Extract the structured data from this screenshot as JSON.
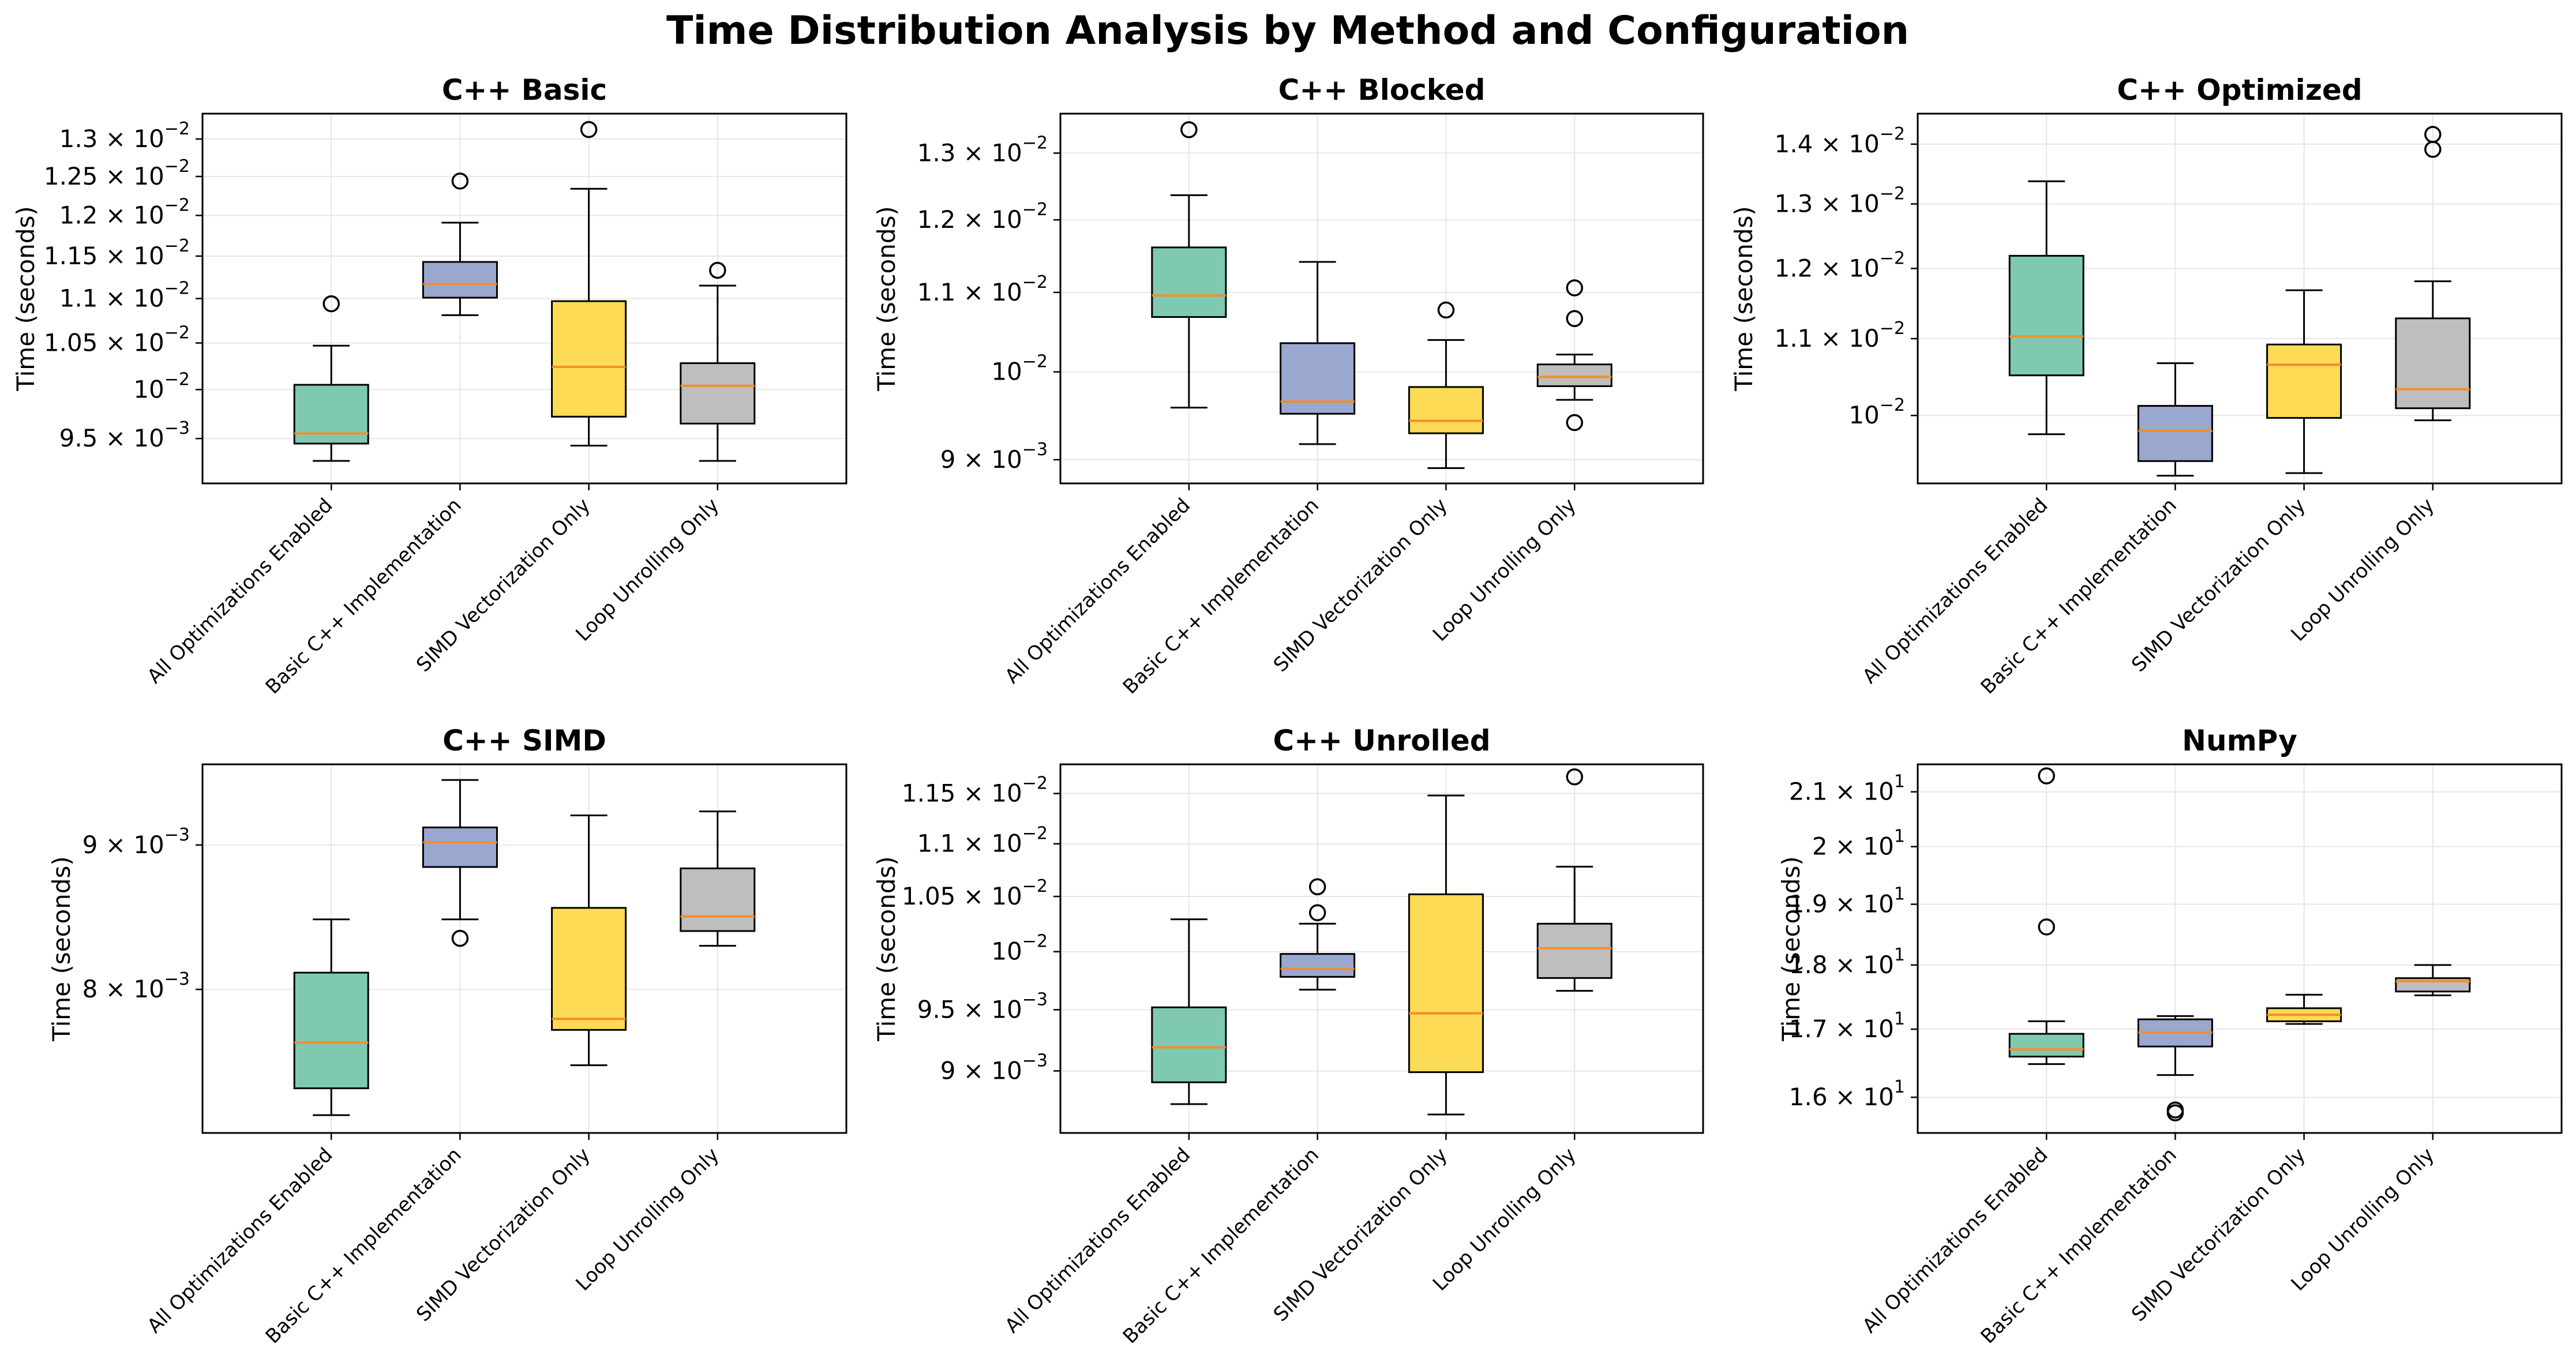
{
  "chart_data": {
    "title": "Time Distribution Analysis by Method and Configuration",
    "type": "box",
    "categories": [
      "All Optimizations Enabled",
      "Basic C++ Implementation",
      "SIMD Vectorization Only",
      "Loop Unrolling Only"
    ],
    "colors": [
      "#7fc9b0",
      "#9aa7cf",
      "#fddb55",
      "#bebebe"
    ],
    "median_color": "#f28e2b",
    "ylabel": "Time (seconds)",
    "yscale": "log",
    "grid": true,
    "panels": [
      {
        "title": "C++ Basic",
        "ylim": [
          0.009064,
          0.01335
        ],
        "yticks": [
          {
            "v": 0.0095,
            "m": "9.5",
            "e": "−3"
          },
          {
            "v": 0.01,
            "m": "",
            "e": "−2"
          },
          {
            "v": 0.0105,
            "m": "1.05",
            "e": "−2"
          },
          {
            "v": 0.011,
            "m": "1.1",
            "e": "−2"
          },
          {
            "v": 0.0115,
            "m": "1.15",
            "e": "−2"
          },
          {
            "v": 0.012,
            "m": "1.2",
            "e": "−2"
          },
          {
            "v": 0.0125,
            "m": "1.25",
            "e": "−2"
          },
          {
            "v": 0.013,
            "m": "1.3",
            "e": "−2"
          }
        ],
        "boxes": [
          {
            "whislo": 0.00928,
            "q1": 0.00945,
            "med": 0.00955,
            "q3": 0.01005,
            "whishi": 0.01047,
            "fliers": [
              0.01094
            ]
          },
          {
            "whislo": 0.01081,
            "q1": 0.01101,
            "med": 0.01117,
            "q3": 0.01143,
            "whishi": 0.01191,
            "fliers": [
              0.01244
            ]
          },
          {
            "whislo": 0.00943,
            "q1": 0.00972,
            "med": 0.01024,
            "q3": 0.01097,
            "whishi": 0.01234,
            "fliers": [
              0.01313
            ]
          },
          {
            "whislo": 0.00928,
            "q1": 0.00965,
            "med": 0.01004,
            "q3": 0.01028,
            "whishi": 0.01115,
            "fliers": [
              0.01133
            ]
          }
        ]
      },
      {
        "title": "C++ Blocked",
        "ylim": [
          0.008748,
          0.01363
        ],
        "yticks": [
          {
            "v": 0.009,
            "m": "9",
            "e": "−3"
          },
          {
            "v": 0.01,
            "m": "",
            "e": "−2"
          },
          {
            "v": 0.011,
            "m": "1.1",
            "e": "−2"
          },
          {
            "v": 0.012,
            "m": "1.2",
            "e": "−2"
          },
          {
            "v": 0.013,
            "m": "1.3",
            "e": "−2"
          }
        ],
        "boxes": [
          {
            "whislo": 0.00958,
            "q1": 0.01068,
            "med": 0.01096,
            "q3": 0.01161,
            "whishi": 0.01236,
            "fliers": [
              0.01337
            ]
          },
          {
            "whislo": 0.00917,
            "q1": 0.00951,
            "med": 0.00965,
            "q3": 0.01035,
            "whishi": 0.01141,
            "fliers": []
          },
          {
            "whislo": 0.00891,
            "q1": 0.00929,
            "med": 0.00943,
            "q3": 0.00982,
            "whishi": 0.01039,
            "fliers": [
              0.01077
            ]
          },
          {
            "whislo": 0.00967,
            "q1": 0.00983,
            "med": 0.00994,
            "q3": 0.01009,
            "whishi": 0.01021,
            "fliers": [
              0.00941,
              0.01066,
              0.01106
            ]
          }
        ]
      },
      {
        "title": "C++ Optimized",
        "ylim": [
          0.009192,
          0.01454
        ],
        "yticks": [
          {
            "v": 0.01,
            "m": "",
            "e": "−2"
          },
          {
            "v": 0.011,
            "m": "1.1",
            "e": "−2"
          },
          {
            "v": 0.012,
            "m": "1.2",
            "e": "−2"
          },
          {
            "v": 0.013,
            "m": "1.3",
            "e": "−2"
          },
          {
            "v": 0.014,
            "m": "1.4",
            "e": "−2"
          }
        ],
        "boxes": [
          {
            "whislo": 0.00977,
            "q1": 0.01051,
            "med": 0.01103,
            "q3": 0.01219,
            "whishi": 0.01337,
            "fliers": []
          },
          {
            "whislo": 0.00928,
            "q1": 0.00945,
            "med": 0.00981,
            "q3": 0.01012,
            "whishi": 0.01067,
            "fliers": []
          },
          {
            "whislo": 0.00931,
            "q1": 0.00997,
            "med": 0.01065,
            "q3": 0.01092,
            "whishi": 0.01168,
            "fliers": []
          },
          {
            "whislo": 0.00994,
            "q1": 0.01009,
            "med": 0.01033,
            "q3": 0.01128,
            "whishi": 0.01181,
            "fliers": [
              0.01391,
              0.01417
            ]
          }
        ]
      },
      {
        "title": "C++ SIMD",
        "ylim": [
          0.007116,
          0.009612
        ],
        "yticks": [
          {
            "v": 0.008,
            "m": "8",
            "e": "−3"
          },
          {
            "v": 0.009,
            "m": "9",
            "e": "−3"
          }
        ],
        "boxes": [
          {
            "whislo": 0.00722,
            "q1": 0.00738,
            "med": 0.00766,
            "q3": 0.00811,
            "whishi": 0.00847,
            "fliers": []
          },
          {
            "whislo": 0.00847,
            "q1": 0.00884,
            "med": 0.00902,
            "q3": 0.00913,
            "whishi": 0.00949,
            "fliers": [
              0.00834
            ]
          },
          {
            "whislo": 0.00752,
            "q1": 0.00774,
            "med": 0.00781,
            "q3": 0.00855,
            "whishi": 0.00922,
            "fliers": []
          },
          {
            "whislo": 0.00829,
            "q1": 0.00839,
            "med": 0.00849,
            "q3": 0.00883,
            "whishi": 0.00925,
            "fliers": []
          }
        ]
      },
      {
        "title": "C++ Unrolled",
        "ylim": [
          0.00852,
          0.0118
        ],
        "yticks": [
          {
            "v": 0.009,
            "m": "9",
            "e": "−3"
          },
          {
            "v": 0.0095,
            "m": "9.5",
            "e": "−3"
          },
          {
            "v": 0.01,
            "m": "",
            "e": "−2"
          },
          {
            "v": 0.0105,
            "m": "1.05",
            "e": "−2"
          },
          {
            "v": 0.011,
            "m": "1.1",
            "e": "−2"
          },
          {
            "v": 0.0115,
            "m": "1.15",
            "e": "−2"
          }
        ],
        "boxes": [
          {
            "whislo": 0.00874,
            "q1": 0.00891,
            "med": 0.00919,
            "q3": 0.00952,
            "whishi": 0.01029,
            "fliers": []
          },
          {
            "whislo": 0.00967,
            "q1": 0.00978,
            "med": 0.00985,
            "q3": 0.00998,
            "whishi": 0.01025,
            "fliers": [
              0.01035,
              0.01059
            ]
          },
          {
            "whislo": 0.00866,
            "q1": 0.00899,
            "med": 0.00947,
            "q3": 0.01052,
            "whishi": 0.01148,
            "fliers": []
          },
          {
            "whislo": 0.00966,
            "q1": 0.00977,
            "med": 0.01003,
            "q3": 0.01025,
            "whishi": 0.01078,
            "fliers": [
              0.01167
            ]
          }
        ]
      },
      {
        "title": "NumPy",
        "ylim": [
          15.5,
          21.52
        ],
        "yticks": [
          {
            "v": 16,
            "m": "1.6",
            "e": "1"
          },
          {
            "v": 17,
            "m": "1.7",
            "e": "1"
          },
          {
            "v": 18,
            "m": "1.8",
            "e": "1"
          },
          {
            "v": 19,
            "m": "1.9",
            "e": "1"
          },
          {
            "v": 20,
            "m": "2",
            "e": "1"
          },
          {
            "v": 21,
            "m": "2.1",
            "e": "1"
          }
        ],
        "boxes": [
          {
            "whislo": 16.48,
            "q1": 16.59,
            "med": 16.7,
            "q3": 16.93,
            "whishi": 17.12,
            "fliers": [
              18.62,
              21.3
            ]
          },
          {
            "whislo": 16.32,
            "q1": 16.74,
            "med": 16.95,
            "q3": 17.15,
            "whishi": 17.2,
            "fliers": [
              15.78,
              15.82
            ]
          },
          {
            "whislo": 17.08,
            "q1": 17.12,
            "med": 17.22,
            "q3": 17.32,
            "whishi": 17.53,
            "fliers": []
          },
          {
            "whislo": 17.52,
            "q1": 17.58,
            "med": 17.74,
            "q3": 17.79,
            "whishi": 18.0,
            "fliers": []
          }
        ]
      }
    ]
  }
}
